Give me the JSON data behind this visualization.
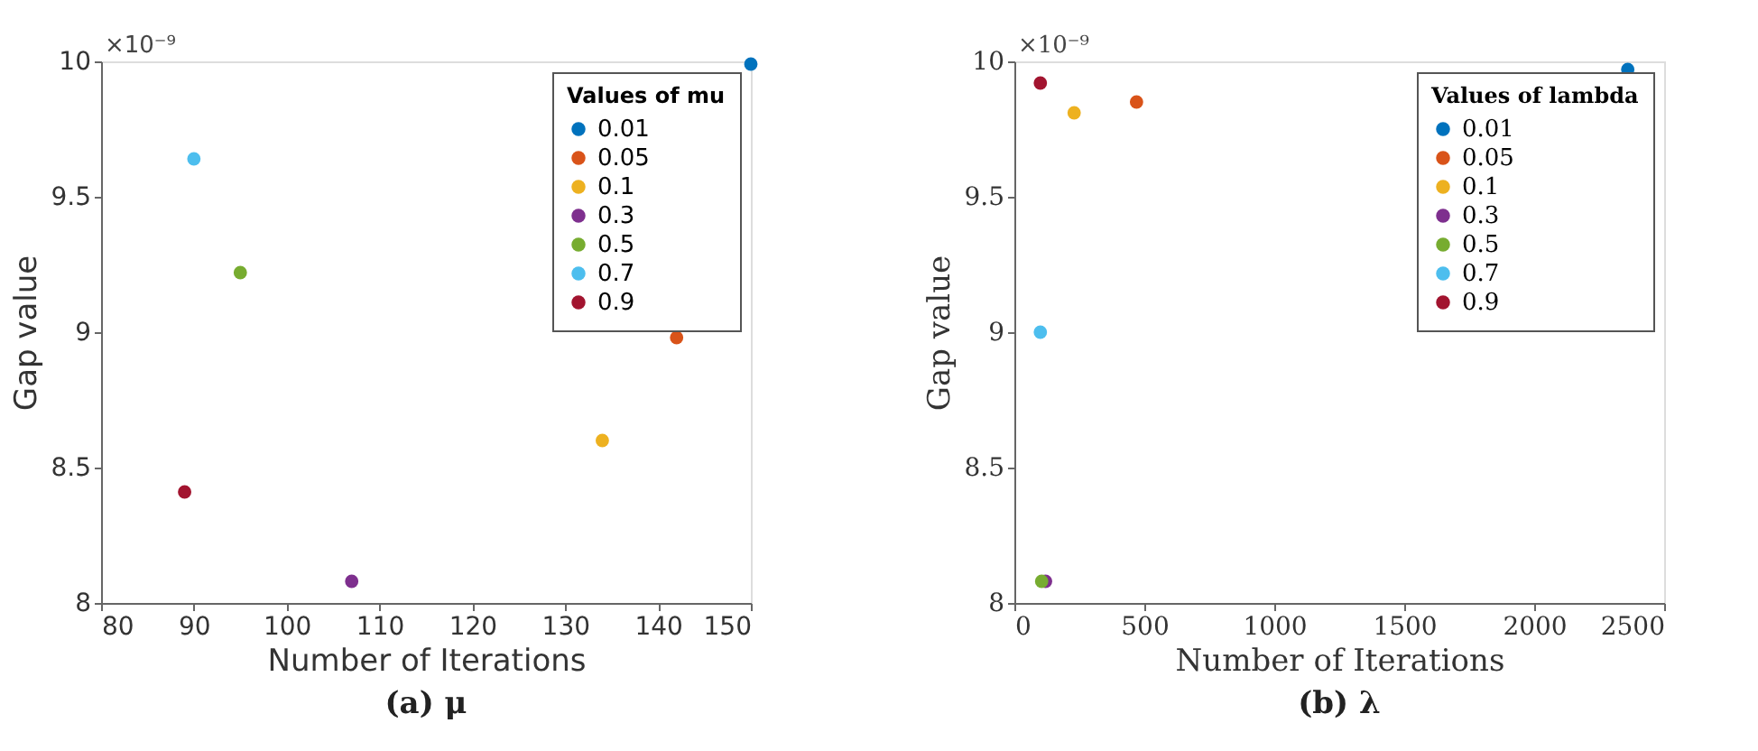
{
  "chart_data": [
    {
      "type": "scatter",
      "title": "(a) μ",
      "xlabel": "Number of Iterations",
      "ylabel": "Gap value",
      "legend_title": "Values of mu",
      "legend": "top right",
      "marker": "circle",
      "grid": false,
      "xlim": [
        80,
        150
      ],
      "xticks": [
        80,
        90,
        100,
        110,
        120,
        130,
        140,
        150
      ],
      "ylim": [
        8,
        10
      ],
      "yticks": [
        8,
        8.5,
        9,
        9.5,
        10
      ],
      "annotations": [
        "×10⁻⁹"
      ],
      "series": [
        {
          "name": "0.01",
          "color": "#0072bd",
          "x": [
            150
          ],
          "values": [
            9.99
          ]
        },
        {
          "name": "0.05",
          "color": "#d95319",
          "x": [
            142
          ],
          "values": [
            8.98
          ]
        },
        {
          "name": "0.1",
          "color": "#edb120",
          "x": [
            134
          ],
          "values": [
            8.6
          ]
        },
        {
          "name": "0.3",
          "color": "#7e2f8e",
          "x": [
            107
          ],
          "values": [
            8.08
          ]
        },
        {
          "name": "0.5",
          "color": "#77ac30",
          "x": [
            95
          ],
          "values": [
            9.22
          ]
        },
        {
          "name": "0.7",
          "color": "#4dbeee",
          "x": [
            90
          ],
          "values": [
            9.64
          ]
        },
        {
          "name": "0.9",
          "color": "#a2142f",
          "x": [
            89
          ],
          "values": [
            8.41
          ]
        }
      ]
    },
    {
      "type": "scatter",
      "title": "(b) λ",
      "xlabel": "Number of Iterations",
      "ylabel": "Gap value",
      "legend_title": "Values of lambda",
      "legend": "top right",
      "marker": "circle",
      "grid": false,
      "xlim": [
        0,
        2500
      ],
      "xticks": [
        0,
        500,
        1000,
        1500,
        2000,
        2500
      ],
      "ylim": [
        8,
        10
      ],
      "yticks": [
        8,
        8.5,
        9,
        9.5,
        10
      ],
      "annotations": [
        "×10⁻⁹"
      ],
      "series": [
        {
          "name": "0.01",
          "color": "#0072bd",
          "x": [
            2360
          ],
          "values": [
            9.97
          ]
        },
        {
          "name": "0.05",
          "color": "#d95319",
          "x": [
            470
          ],
          "values": [
            9.85
          ]
        },
        {
          "name": "0.1",
          "color": "#edb120",
          "x": [
            230
          ],
          "values": [
            9.81
          ]
        },
        {
          "name": "0.3",
          "color": "#7e2f8e",
          "x": [
            120
          ],
          "values": [
            8.08
          ]
        },
        {
          "name": "0.5",
          "color": "#77ac30",
          "x": [
            105
          ],
          "values": [
            8.08
          ]
        },
        {
          "name": "0.7",
          "color": "#4dbeee",
          "x": [
            100
          ],
          "values": [
            9.0
          ]
        },
        {
          "name": "0.9",
          "color": "#a2142f",
          "x": [
            100
          ],
          "values": [
            9.92
          ]
        }
      ]
    }
  ]
}
